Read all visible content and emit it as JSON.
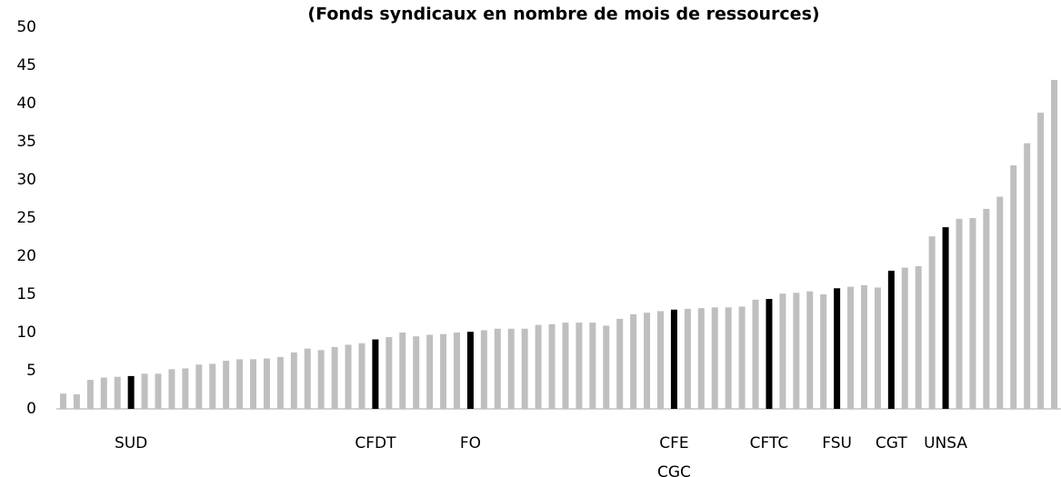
{
  "chart_data": {
    "type": "bar",
    "title": "(Fonds syndicaux en nombre de mois de ressources)",
    "categories": [
      null,
      null,
      null,
      null,
      null,
      "SUD",
      null,
      null,
      null,
      null,
      null,
      null,
      null,
      null,
      null,
      null,
      null,
      null,
      null,
      null,
      null,
      null,
      null,
      "CFDT",
      null,
      null,
      null,
      null,
      null,
      null,
      "FO",
      null,
      null,
      null,
      null,
      null,
      null,
      null,
      null,
      null,
      null,
      null,
      null,
      null,
      null,
      "CFE CGC",
      null,
      null,
      null,
      null,
      null,
      null,
      "CFTC",
      null,
      null,
      null,
      null,
      "FSU",
      null,
      null,
      null,
      "CGT",
      null,
      null,
      null,
      "UNSA",
      null,
      null,
      null,
      null,
      null,
      null,
      null,
      null
    ],
    "values": [
      2.0,
      1.9,
      3.8,
      4.1,
      4.2,
      4.3,
      4.6,
      4.6,
      5.2,
      5.3,
      5.8,
      5.9,
      6.3,
      6.5,
      6.5,
      6.6,
      6.8,
      7.4,
      7.9,
      7.7,
      8.1,
      8.4,
      8.6,
      9.1,
      9.4,
      10.0,
      9.5,
      9.7,
      9.8,
      10.0,
      10.1,
      10.3,
      10.5,
      10.5,
      10.5,
      11.0,
      11.1,
      11.3,
      11.3,
      11.3,
      10.9,
      11.8,
      12.4,
      12.6,
      12.8,
      13.0,
      13.1,
      13.2,
      13.3,
      13.3,
      13.4,
      14.3,
      14.4,
      15.1,
      15.2,
      15.4,
      15.0,
      15.8,
      16.0,
      16.2,
      15.9,
      18.1,
      18.5,
      18.7,
      22.6,
      23.8,
      24.9,
      25.0,
      26.2,
      27.8,
      31.9,
      34.8,
      38.8,
      43.1
    ],
    "color": "#bfbfbf",
    "highlight_color": "#000000",
    "ylim": [
      0,
      50
    ],
    "yticks": [
      0,
      5,
      10,
      15,
      20,
      25,
      30,
      35,
      40,
      45,
      50
    ],
    "grid": false
  }
}
